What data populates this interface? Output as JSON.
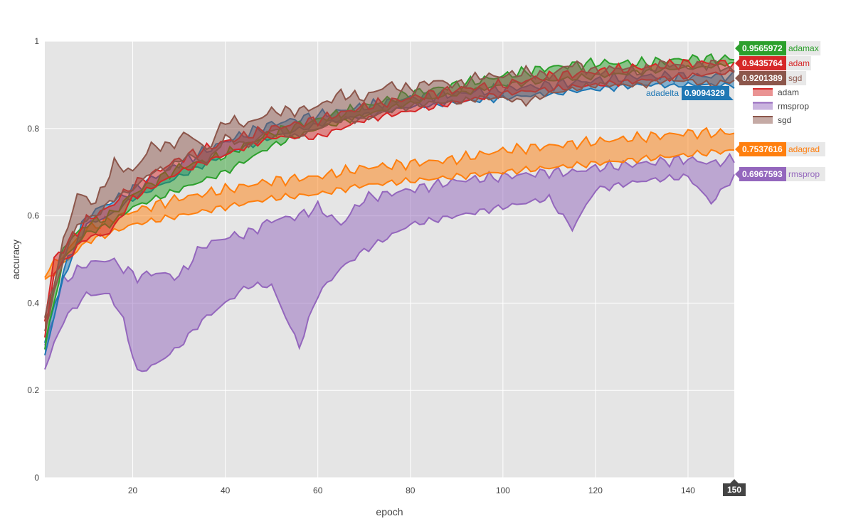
{
  "chart_data": {
    "type": "area",
    "xlabel": "epoch",
    "ylabel": "accuracy",
    "xlim": [
      1,
      150
    ],
    "ylim": [
      0,
      1
    ],
    "xticks": [
      20,
      40,
      60,
      80,
      100,
      120,
      140
    ],
    "yticks": [
      0,
      0.2,
      0.4,
      0.6,
      0.8,
      1
    ],
    "ytick_labels": [
      "0",
      "0.2",
      "0.4",
      "0.6",
      "0.8",
      "1"
    ],
    "grid": true,
    "hover_x_label": "150",
    "plot_background": "#e5e5e5",
    "legend": {
      "placement": "top-right",
      "visible_entries": [
        "adam",
        "rmsprop",
        "sgd"
      ]
    },
    "series": [
      {
        "name": "adadelta",
        "color": "#1f77b4",
        "final_value_label": "0.9094329",
        "band_keyframes": [
          {
            "x": 1,
            "lo": 0.28,
            "hi": 0.31
          },
          {
            "x": 5,
            "lo": 0.46,
            "hi": 0.47
          },
          {
            "x": 10,
            "lo": 0.58,
            "hi": 0.6
          },
          {
            "x": 15,
            "lo": 0.6,
            "hi": 0.63
          },
          {
            "x": 20,
            "lo": 0.64,
            "hi": 0.66
          },
          {
            "x": 30,
            "lo": 0.69,
            "hi": 0.72
          },
          {
            "x": 40,
            "lo": 0.74,
            "hi": 0.77
          },
          {
            "x": 50,
            "lo": 0.78,
            "hi": 0.81
          },
          {
            "x": 60,
            "lo": 0.81,
            "hi": 0.83
          },
          {
            "x": 70,
            "lo": 0.83,
            "hi": 0.85
          },
          {
            "x": 80,
            "lo": 0.85,
            "hi": 0.87
          },
          {
            "x": 90,
            "lo": 0.86,
            "hi": 0.88
          },
          {
            "x": 100,
            "lo": 0.87,
            "hi": 0.89
          },
          {
            "x": 110,
            "lo": 0.88,
            "hi": 0.9
          },
          {
            "x": 120,
            "lo": 0.89,
            "hi": 0.91
          },
          {
            "x": 130,
            "lo": 0.9,
            "hi": 0.92
          },
          {
            "x": 140,
            "lo": 0.9,
            "hi": 0.92
          },
          {
            "x": 150,
            "lo": 0.9,
            "hi": 0.92
          }
        ],
        "final": 0.9094329
      },
      {
        "name": "adagrad",
        "color": "#ff7f0e",
        "final_value_label": "0.7537616",
        "band_keyframes": [
          {
            "x": 1,
            "lo": 0.45,
            "hi": 0.47
          },
          {
            "x": 5,
            "lo": 0.49,
            "hi": 0.51
          },
          {
            "x": 10,
            "lo": 0.54,
            "hi": 0.57
          },
          {
            "x": 15,
            "lo": 0.56,
            "hi": 0.59
          },
          {
            "x": 20,
            "lo": 0.58,
            "hi": 0.61
          },
          {
            "x": 30,
            "lo": 0.6,
            "hi": 0.64
          },
          {
            "x": 40,
            "lo": 0.62,
            "hi": 0.66
          },
          {
            "x": 50,
            "lo": 0.64,
            "hi": 0.68
          },
          {
            "x": 60,
            "lo": 0.65,
            "hi": 0.69
          },
          {
            "x": 70,
            "lo": 0.67,
            "hi": 0.71
          },
          {
            "x": 80,
            "lo": 0.68,
            "hi": 0.72
          },
          {
            "x": 90,
            "lo": 0.69,
            "hi": 0.73
          },
          {
            "x": 100,
            "lo": 0.7,
            "hi": 0.75
          },
          {
            "x": 110,
            "lo": 0.71,
            "hi": 0.76
          },
          {
            "x": 120,
            "lo": 0.72,
            "hi": 0.77
          },
          {
            "x": 130,
            "lo": 0.73,
            "hi": 0.78
          },
          {
            "x": 140,
            "lo": 0.74,
            "hi": 0.79
          },
          {
            "x": 150,
            "lo": 0.75,
            "hi": 0.79
          }
        ],
        "final": 0.7537616
      },
      {
        "name": "adamax",
        "color": "#2ca02c",
        "final_value_label": "0.9565972",
        "band_keyframes": [
          {
            "x": 1,
            "lo": 0.3,
            "hi": 0.35
          },
          {
            "x": 5,
            "lo": 0.5,
            "hi": 0.53
          },
          {
            "x": 10,
            "lo": 0.56,
            "hi": 0.58
          },
          {
            "x": 15,
            "lo": 0.58,
            "hi": 0.6
          },
          {
            "x": 20,
            "lo": 0.62,
            "hi": 0.65
          },
          {
            "x": 30,
            "lo": 0.66,
            "hi": 0.71
          },
          {
            "x": 40,
            "lo": 0.7,
            "hi": 0.74
          },
          {
            "x": 50,
            "lo": 0.76,
            "hi": 0.79
          },
          {
            "x": 60,
            "lo": 0.8,
            "hi": 0.82
          },
          {
            "x": 70,
            "lo": 0.83,
            "hi": 0.85
          },
          {
            "x": 80,
            "lo": 0.86,
            "hi": 0.88
          },
          {
            "x": 90,
            "lo": 0.88,
            "hi": 0.9
          },
          {
            "x": 100,
            "lo": 0.9,
            "hi": 0.92
          },
          {
            "x": 110,
            "lo": 0.91,
            "hi": 0.94
          },
          {
            "x": 120,
            "lo": 0.92,
            "hi": 0.95
          },
          {
            "x": 130,
            "lo": 0.93,
            "hi": 0.95
          },
          {
            "x": 140,
            "lo": 0.94,
            "hi": 0.96
          },
          {
            "x": 150,
            "lo": 0.95,
            "hi": 0.96
          }
        ],
        "final": 0.9565972
      },
      {
        "name": "adam",
        "color": "#d62728",
        "final_value_label": "0.9435764",
        "band_keyframes": [
          {
            "x": 1,
            "lo": 0.32,
            "hi": 0.36
          },
          {
            "x": 3,
            "lo": 0.47,
            "hi": 0.5
          },
          {
            "x": 10,
            "lo": 0.55,
            "hi": 0.59
          },
          {
            "x": 15,
            "lo": 0.56,
            "hi": 0.62
          },
          {
            "x": 20,
            "lo": 0.64,
            "hi": 0.67
          },
          {
            "x": 30,
            "lo": 0.7,
            "hi": 0.73
          },
          {
            "x": 40,
            "lo": 0.74,
            "hi": 0.77
          },
          {
            "x": 50,
            "lo": 0.78,
            "hi": 0.8
          },
          {
            "x": 60,
            "lo": 0.78,
            "hi": 0.82
          },
          {
            "x": 70,
            "lo": 0.82,
            "hi": 0.85
          },
          {
            "x": 80,
            "lo": 0.84,
            "hi": 0.87
          },
          {
            "x": 90,
            "lo": 0.86,
            "hi": 0.89
          },
          {
            "x": 100,
            "lo": 0.88,
            "hi": 0.9
          },
          {
            "x": 110,
            "lo": 0.89,
            "hi": 0.92
          },
          {
            "x": 120,
            "lo": 0.9,
            "hi": 0.93
          },
          {
            "x": 130,
            "lo": 0.91,
            "hi": 0.94
          },
          {
            "x": 140,
            "lo": 0.92,
            "hi": 0.95
          },
          {
            "x": 150,
            "lo": 0.93,
            "hi": 0.95
          }
        ],
        "final": 0.9435764
      },
      {
        "name": "rmsprop",
        "color": "#9467bd",
        "final_value_label": "0.6967593",
        "band_keyframes": [
          {
            "x": 1,
            "lo": 0.25,
            "hi": 0.3
          },
          {
            "x": 5,
            "lo": 0.36,
            "hi": 0.45
          },
          {
            "x": 10,
            "lo": 0.42,
            "hi": 0.49
          },
          {
            "x": 15,
            "lo": 0.42,
            "hi": 0.5
          },
          {
            "x": 18,
            "lo": 0.36,
            "hi": 0.48
          },
          {
            "x": 21,
            "lo": 0.24,
            "hi": 0.46
          },
          {
            "x": 25,
            "lo": 0.26,
            "hi": 0.47
          },
          {
            "x": 30,
            "lo": 0.3,
            "hi": 0.46
          },
          {
            "x": 35,
            "lo": 0.36,
            "hi": 0.53
          },
          {
            "x": 40,
            "lo": 0.4,
            "hi": 0.55
          },
          {
            "x": 45,
            "lo": 0.44,
            "hi": 0.56
          },
          {
            "x": 50,
            "lo": 0.44,
            "hi": 0.59
          },
          {
            "x": 56,
            "lo": 0.3,
            "hi": 0.6
          },
          {
            "x": 60,
            "lo": 0.42,
            "hi": 0.62
          },
          {
            "x": 65,
            "lo": 0.48,
            "hi": 0.58
          },
          {
            "x": 70,
            "lo": 0.52,
            "hi": 0.64
          },
          {
            "x": 80,
            "lo": 0.58,
            "hi": 0.66
          },
          {
            "x": 90,
            "lo": 0.6,
            "hi": 0.68
          },
          {
            "x": 100,
            "lo": 0.62,
            "hi": 0.69
          },
          {
            "x": 110,
            "lo": 0.64,
            "hi": 0.7
          },
          {
            "x": 115,
            "lo": 0.57,
            "hi": 0.7
          },
          {
            "x": 120,
            "lo": 0.66,
            "hi": 0.71
          },
          {
            "x": 130,
            "lo": 0.68,
            "hi": 0.72
          },
          {
            "x": 140,
            "lo": 0.69,
            "hi": 0.73
          },
          {
            "x": 145,
            "lo": 0.63,
            "hi": 0.72
          },
          {
            "x": 150,
            "lo": 0.69,
            "hi": 0.73
          }
        ],
        "final": 0.6967593
      },
      {
        "name": "sgd",
        "color": "#8c564b",
        "final_value_label": "0.9201389",
        "band_keyframes": [
          {
            "x": 1,
            "lo": 0.34,
            "hi": 0.36
          },
          {
            "x": 5,
            "lo": 0.5,
            "hi": 0.54
          },
          {
            "x": 8,
            "lo": 0.58,
            "hi": 0.65
          },
          {
            "x": 12,
            "lo": 0.6,
            "hi": 0.63
          },
          {
            "x": 16,
            "lo": 0.64,
            "hi": 0.72
          },
          {
            "x": 20,
            "lo": 0.66,
            "hi": 0.7
          },
          {
            "x": 24,
            "lo": 0.7,
            "hi": 0.76
          },
          {
            "x": 28,
            "lo": 0.71,
            "hi": 0.76
          },
          {
            "x": 32,
            "lo": 0.74,
            "hi": 0.79
          },
          {
            "x": 36,
            "lo": 0.72,
            "hi": 0.75
          },
          {
            "x": 40,
            "lo": 0.78,
            "hi": 0.82
          },
          {
            "x": 45,
            "lo": 0.76,
            "hi": 0.81
          },
          {
            "x": 50,
            "lo": 0.8,
            "hi": 0.84
          },
          {
            "x": 55,
            "lo": 0.78,
            "hi": 0.84
          },
          {
            "x": 60,
            "lo": 0.8,
            "hi": 0.85
          },
          {
            "x": 65,
            "lo": 0.82,
            "hi": 0.88
          },
          {
            "x": 70,
            "lo": 0.82,
            "hi": 0.87
          },
          {
            "x": 75,
            "lo": 0.84,
            "hi": 0.9
          },
          {
            "x": 80,
            "lo": 0.85,
            "hi": 0.89
          },
          {
            "x": 85,
            "lo": 0.86,
            "hi": 0.91
          },
          {
            "x": 90,
            "lo": 0.86,
            "hi": 0.9
          },
          {
            "x": 95,
            "lo": 0.87,
            "hi": 0.92
          },
          {
            "x": 100,
            "lo": 0.87,
            "hi": 0.92
          },
          {
            "x": 105,
            "lo": 0.86,
            "hi": 0.93
          },
          {
            "x": 110,
            "lo": 0.88,
            "hi": 0.92
          },
          {
            "x": 115,
            "lo": 0.89,
            "hi": 0.95
          },
          {
            "x": 120,
            "lo": 0.9,
            "hi": 0.93
          },
          {
            "x": 125,
            "lo": 0.9,
            "hi": 0.94
          },
          {
            "x": 130,
            "lo": 0.9,
            "hi": 0.93
          },
          {
            "x": 135,
            "lo": 0.91,
            "hi": 0.95
          },
          {
            "x": 140,
            "lo": 0.91,
            "hi": 0.94
          },
          {
            "x": 145,
            "lo": 0.9,
            "hi": 0.95
          },
          {
            "x": 150,
            "lo": 0.91,
            "hi": 0.93
          }
        ],
        "final": 0.9201389
      }
    ]
  }
}
